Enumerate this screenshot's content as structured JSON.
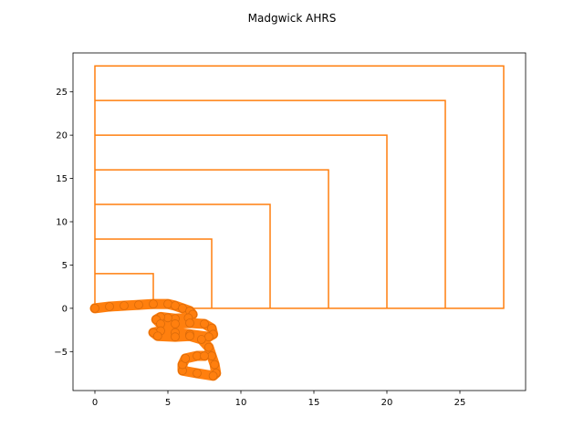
{
  "chart_data": {
    "type": "line",
    "title": "Madgwick AHRS",
    "xlabel": "",
    "ylabel": "",
    "xlim": [
      -1.5,
      29.5
    ],
    "ylim": [
      -9.5,
      29.5
    ],
    "xticks": [
      0,
      5,
      10,
      15,
      20,
      25
    ],
    "yticks": [
      -5,
      0,
      5,
      10,
      15,
      20,
      25
    ],
    "xtick_labels": [
      "0",
      "5",
      "10",
      "15",
      "20",
      "25"
    ],
    "ytick_labels": [
      "−5",
      "0",
      "5",
      "10",
      "15",
      "20",
      "25"
    ],
    "grid": false,
    "legend": "none",
    "series": [
      {
        "color": "#ff7f0e",
        "style": "line",
        "x": [
          0,
          0,
          4,
          4,
          0,
          0,
          8,
          8,
          0,
          0,
          12,
          12,
          0,
          0,
          16,
          16,
          0,
          0,
          20,
          20,
          0,
          0,
          24,
          24,
          0,
          0,
          28,
          28,
          0
        ],
        "y": [
          0,
          4,
          4,
          0,
          0,
          8,
          8,
          0,
          0,
          12,
          12,
          0,
          0,
          16,
          16,
          0,
          0,
          20,
          20,
          0,
          0,
          24,
          24,
          0,
          0,
          28,
          28,
          0,
          0
        ]
      },
      {
        "color": "#ff7f0e",
        "style": "thick-marker-trail",
        "x": [
          0,
          1,
          2,
          3,
          4,
          5,
          5.5,
          6,
          6.5,
          6.7,
          6.4,
          5.5,
          5,
          4.5,
          4.2,
          4.5,
          5.5,
          6.5,
          7.5,
          8.0,
          8.1,
          7.8,
          6.5,
          5.5,
          4.5,
          4.0,
          4.3,
          5.5,
          6.5,
          7.3,
          7.8,
          8.0,
          8.2,
          8.3,
          8.1,
          7.0,
          6.0,
          6.0,
          6.2,
          7.0,
          7.5
        ],
        "y": [
          0,
          0.2,
          0.3,
          0.4,
          0.5,
          0.5,
          0.3,
          0.0,
          -0.3,
          -0.7,
          -1.1,
          -1.2,
          -1.1,
          -1.0,
          -1.3,
          -1.8,
          -1.8,
          -1.7,
          -1.8,
          -2.3,
          -3.0,
          -3.3,
          -3.0,
          -2.8,
          -2.6,
          -2.8,
          -3.2,
          -3.3,
          -3.2,
          -3.6,
          -4.5,
          -5.5,
          -6.5,
          -7.5,
          -7.8,
          -7.5,
          -7.2,
          -6.5,
          -5.8,
          -5.5,
          -5.5
        ]
      }
    ]
  }
}
